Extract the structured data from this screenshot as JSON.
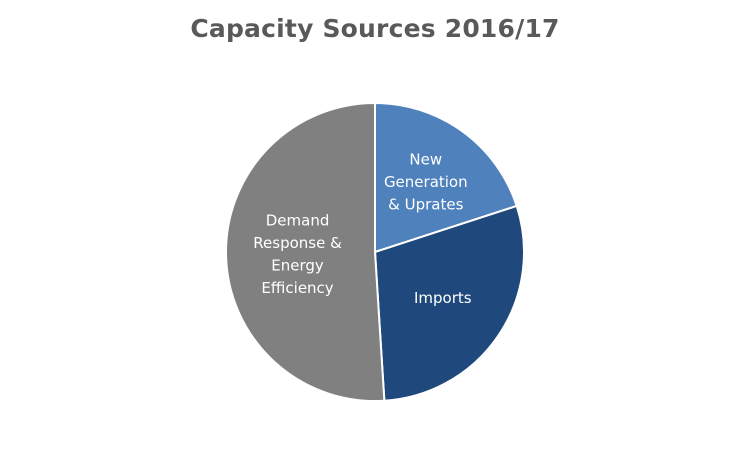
{
  "chart_data": {
    "type": "pie",
    "title": "Capacity Sources 2016/17",
    "series": [
      {
        "labels": [
          [
            "New",
            "Generation",
            "& Uprates"
          ],
          [
            "Imports"
          ],
          [
            "Demand",
            "Response &",
            "Energy",
            "Efficiency"
          ]
        ],
        "names": [
          "New Generation & Uprates",
          "Imports",
          "Demand Response & Energy Efficiency"
        ],
        "values": [
          20,
          29,
          51
        ],
        "colors": [
          "#4F81BD",
          "#1F497D",
          "#808080"
        ]
      }
    ],
    "start_angle_deg": 0,
    "direction": "clockwise",
    "legend": "none",
    "slice_border_color": "#ffffff"
  }
}
